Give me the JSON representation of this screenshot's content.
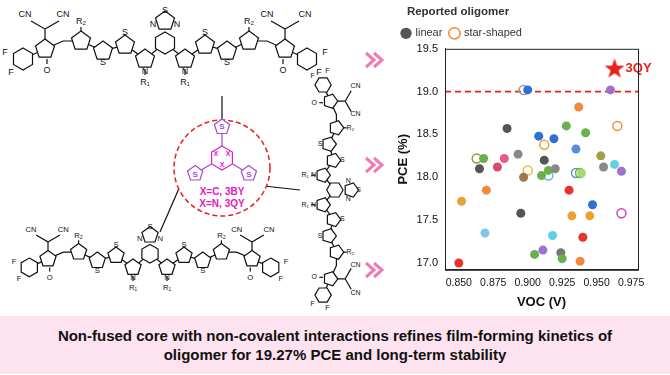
{
  "chart_data": {
    "type": "scatter",
    "xlabel": "VOC (V)",
    "ylabel": "PCE (%)",
    "xlim": [
      0.84,
      0.98
    ],
    "xticks": [
      {
        "value": 0.85,
        "label": "0.850"
      },
      {
        "value": 0.875,
        "label": "0.875"
      },
      {
        "value": 0.9,
        "label": "0.900"
      },
      {
        "value": 0.925,
        "label": "0.925"
      },
      {
        "value": 0.95,
        "label": "0.950"
      },
      {
        "value": 0.975,
        "label": "0.975"
      }
    ],
    "ylim": [
      16.92,
      19.5
    ],
    "yticks": [
      {
        "value": 17,
        "label": "17.0"
      },
      {
        "value": 17.5,
        "label": "17.5"
      },
      {
        "value": 18,
        "label": "18.0"
      },
      {
        "value": 18.5,
        "label": "18.5"
      },
      {
        "value": 19,
        "label": "19.0"
      },
      {
        "value": 19.5,
        "label": "19.5"
      }
    ],
    "grid": false,
    "legend": "top",
    "legend_title": "Reported oligomer",
    "annotations": [
      {
        "type": "hline",
        "y": 19,
        "color": "#e8201c",
        "line_style": "dashed"
      }
    ],
    "series": [
      {
        "name": "linear",
        "marker": "circle",
        "color": "#555555",
        "x": [
          0.85,
          0.852,
          0.865,
          0.868,
          0.87,
          0.869,
          0.878,
          0.883,
          0.885,
          0.893,
          0.895,
          0.897,
          0.9,
          0.905,
          0.908,
          0.91,
          0.911,
          0.912,
          0.915,
          0.918,
          0.919,
          0.92,
          0.924,
          0.925,
          0.928,
          0.93,
          0.932,
          0.935,
          0.937,
          0.938,
          0.939,
          0.94,
          0.942,
          0.945,
          0.947,
          0.953,
          0.955,
          0.96,
          0.963,
          0.968
        ],
        "values": [
          17.0,
          17.72,
          18.1,
          18.22,
          17.85,
          17.35,
          18.12,
          18.22,
          18.57,
          18.27,
          17.58,
          18.0,
          19.02,
          17.1,
          18.48,
          18.02,
          17.15,
          18.2,
          18.08,
          17.32,
          18.45,
          18.1,
          17.12,
          17.05,
          18.6,
          17.85,
          17.55,
          18.33,
          18.82,
          17.02,
          18.05,
          17.3,
          18.52,
          17.55,
          17.68,
          18.25,
          18.12,
          19.02,
          18.15,
          18.07
        ],
        "colors": [
          "#e8322c",
          "#e8a23a",
          "#555555",
          "#6ab04c",
          "#f08a3c",
          "#7fc7e8",
          "#d94b6a",
          "#e85a8a",
          "#555555",
          "#888888",
          "#555555",
          "#a0764a",
          "#2f6fd8",
          "#6ab04c",
          "#2f6fd8",
          "#6ab04c",
          "#a070d0",
          "#555555",
          "#6ab04c",
          "#5fd0e0",
          "#2f6fd8",
          "#888888",
          "#777777",
          "#6ab04c",
          "#6ab04c",
          "#e8322c",
          "#f0a030",
          "#5b8fd8",
          "#f08a3c",
          "#f08a3c",
          "#a8d870",
          "#e8322c",
          "#6ab04c",
          "#f0a030",
          "#2f6fd8",
          "#a0a040",
          "#888888",
          "#a070d0",
          "#5fd0e0",
          "#a070d0"
        ]
      },
      {
        "name": "star-shaped",
        "marker": "open_circle",
        "color": "#f08a3c",
        "x": [
          0.863,
          0.897,
          0.9,
          0.912,
          0.915,
          0.935,
          0.938,
          0.965,
          0.968
        ],
        "values": [
          18.22,
          19.02,
          18.08,
          18.38,
          18.02,
          18.05,
          18.05,
          18.6,
          17.58
        ],
        "colors": [
          "#8aa040",
          "#999999",
          "#e8c030",
          "#f0a030",
          "#5fc0e0",
          "#5b8fd8",
          "#6ab04c",
          "#f08a3c",
          "#d040c0"
        ]
      },
      {
        "name": "3QY",
        "marker": "star",
        "color": "#e8201c",
        "x": [
          0.963
        ],
        "values": [
          19.27
        ]
      }
    ]
  },
  "diagram": {
    "core_labels": [
      "X=C, 3BY",
      "X=N, 3QY"
    ],
    "core_atoms": [
      "X",
      "X",
      "X"
    ],
    "core_thiophene_atoms": [
      "S",
      "S",
      "S"
    ],
    "arm_labels": [
      "S",
      "N",
      "N",
      "N",
      "R₁",
      "N",
      "R₁",
      "S",
      "S",
      "S",
      "S",
      "R₂",
      "R₂",
      "O",
      "CN",
      "CN",
      "F",
      "F",
      "O",
      "CN",
      "CN",
      "F",
      "F"
    ]
  },
  "caption": "Non-fused core with non-covalent interactions refines film-forming kinetics of oligomer for 19.27% PCE and long-term stability"
}
